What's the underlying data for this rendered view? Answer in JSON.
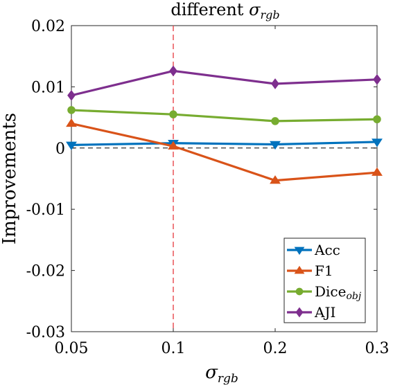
{
  "chart_data": {
    "type": "line",
    "title": {
      "main": "different ",
      "sym": "σ",
      "sub": "rgb"
    },
    "xlabel": {
      "sym": "σ",
      "sub": "rgb"
    },
    "ylabel": "Improvements",
    "x": [
      0.05,
      0.1,
      0.2,
      0.3
    ],
    "x_tick_labels": [
      "0.05",
      "0.1",
      "0.2",
      "0.3"
    ],
    "xlim": [
      0.05,
      0.3
    ],
    "ylim": [
      -0.03,
      0.02
    ],
    "y_ticks": [
      0.02,
      0.01,
      0,
      -0.01,
      -0.02,
      -0.03
    ],
    "y_tick_labels": [
      "0.02",
      "0.01",
      "0",
      "-0.01",
      "-0.02",
      "-0.03"
    ],
    "reference_lines": {
      "horizontal_dashed_y": 0,
      "vertical_dashed_x": 0.1,
      "vertical_color": "#e8454a"
    },
    "legend_position": "bottom-right",
    "series": [
      {
        "name": "Acc",
        "name_sub": "",
        "marker": "triangle-down",
        "color": "#0072bd",
        "values": [
          0.0005,
          0.0008,
          0.0006,
          0.001
        ]
      },
      {
        "name": "F1",
        "name_sub": "",
        "marker": "triangle-up",
        "color": "#d95319",
        "values": [
          0.004,
          0.0003,
          -0.0053,
          -0.004
        ]
      },
      {
        "name": "Dice",
        "name_sub": "obj",
        "marker": "circle",
        "color": "#77ac30",
        "values": [
          0.0062,
          0.0055,
          0.0044,
          0.0047
        ]
      },
      {
        "name": "AJI",
        "name_sub": "",
        "marker": "diamond",
        "color": "#7e2f8e",
        "values": [
          0.0086,
          0.0126,
          0.0105,
          0.0112
        ]
      }
    ]
  }
}
